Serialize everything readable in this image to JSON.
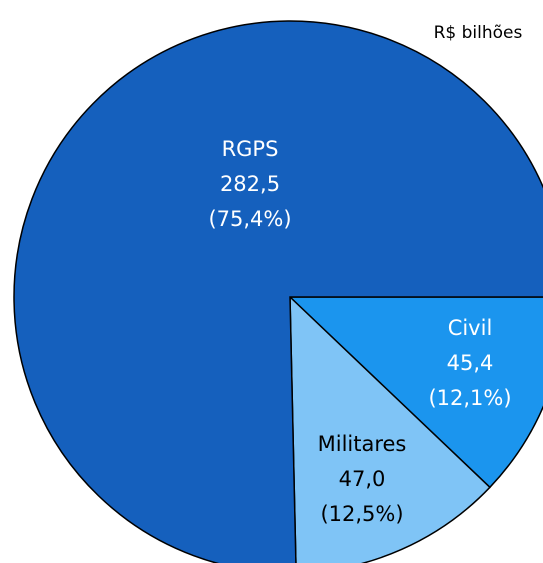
{
  "chart_data": {
    "type": "pie",
    "unit": "R$ bilhões",
    "categories": [
      "Civil",
      "Militares",
      "RGPS"
    ],
    "values": [
      45.4,
      47.0,
      282.5
    ],
    "value_labels": [
      "45,4",
      "47,0",
      "282,5"
    ],
    "percents": [
      12.1,
      12.5,
      75.4
    ],
    "percent_labels": [
      "(12,1%)",
      "(12,5%)",
      "(75,4%)"
    ],
    "colors": [
      "#1b95ee",
      "#7fc4f6",
      "#1560bd"
    ],
    "label_colors": [
      "#ffffff",
      "#000000",
      "#ffffff"
    ]
  }
}
